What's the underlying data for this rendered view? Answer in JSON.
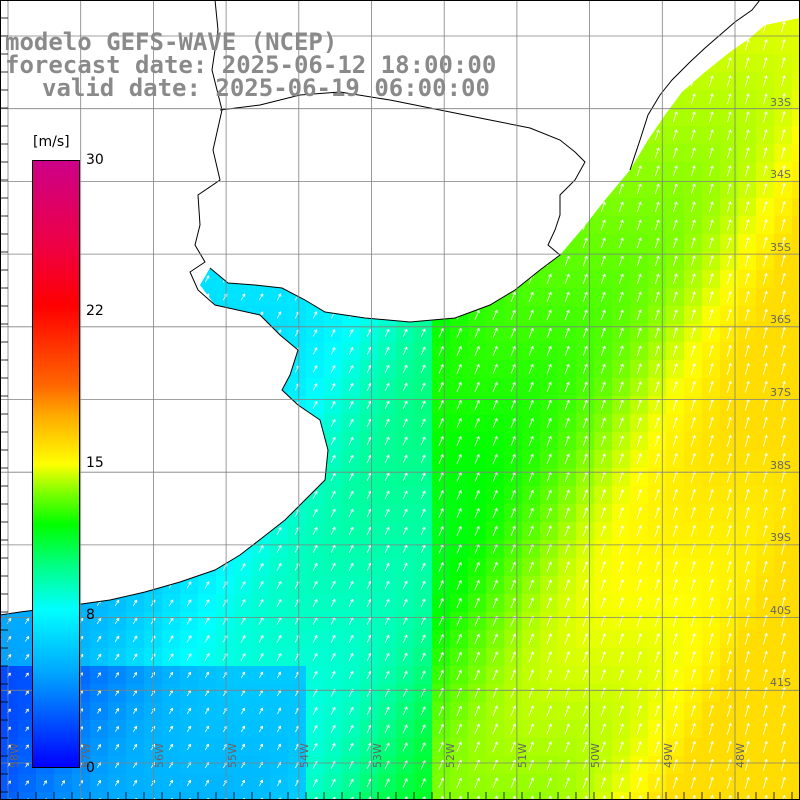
{
  "titles": {
    "line1": "modelo GEFS-WAVE (NCEP)",
    "line2": "forecast date: 2025-06-12 18:00:00",
    "line3": "valid date: 2025-06-19 06:00:00"
  },
  "colorbar": {
    "unit": "[m/s]",
    "ticks": [
      "30",
      "22",
      "15",
      "8",
      "0"
    ],
    "tick_values": [
      30,
      22,
      15,
      8,
      0
    ],
    "range": [
      0,
      30
    ]
  },
  "map": {
    "background": "#ffffff",
    "grid_color": "#808080",
    "coast_color": "#000000",
    "lat_labels": [
      "33S",
      "34S",
      "35S",
      "36S",
      "37S",
      "38S",
      "39S",
      "40S",
      "41S"
    ],
    "lon_labels": [
      "58W",
      "57W",
      "56W",
      "55W",
      "54W",
      "53W",
      "52W",
      "51W",
      "50W",
      "49W",
      "48W"
    ]
  }
}
